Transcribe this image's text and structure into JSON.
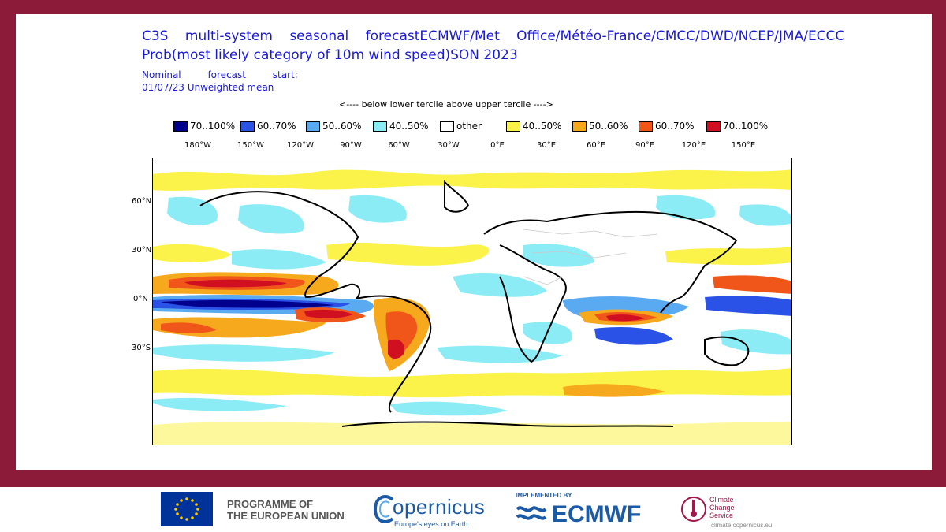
{
  "title": {
    "line1": "C3S multi-system seasonal forecastECMWF/Met Office/Météo-France/CMCC/DWD/NCEP/JMA/ECCC",
    "line2": "Prob(most likely category of 10m wind speed)SON 2023",
    "sub1": "Nominal forecast start:",
    "sub2": "01/07/23 Unweighted mean"
  },
  "tercile_note": "<---- below lower tercile above upper tercile ---->",
  "legend": [
    {
      "label": "70..100%",
      "color": "#00008c"
    },
    {
      "label": "60..70%",
      "color": "#2a52e6"
    },
    {
      "label": "50..60%",
      "color": "#5aaaf2"
    },
    {
      "label": "40..50%",
      "color": "#8cecf5"
    },
    {
      "label": "other",
      "color": "#ffffff"
    },
    {
      "label": "40..50%",
      "color": "#fbf24a"
    },
    {
      "label": "50..60%",
      "color": "#f6a91c"
    },
    {
      "label": "60..70%",
      "color": "#f0561a"
    },
    {
      "label": "70..100%",
      "color": "#d01020"
    }
  ],
  "lon_ticks": [
    "180°W",
    "150°W",
    "120°W",
    "90°W",
    "60°W",
    "30°W",
    "0°E",
    "30°E",
    "60°E",
    "90°E",
    "120°E",
    "150°E"
  ],
  "lat_ticks": [
    "60°N",
    "30°N",
    "0°N",
    "30°S"
  ],
  "footer": {
    "eu_program": "PROGRAMME OF\nTHE EUROPEAN UNION",
    "copernicus": "opernicus",
    "copernicus_tag": "Europe's eyes on Earth",
    "ecmwf_impl": "IMPLEMENTED BY",
    "ecmwf": "ECMWF",
    "c3s_name": "Climate\nChange Service",
    "c3s_url": "climate.copernicus.eu"
  }
}
